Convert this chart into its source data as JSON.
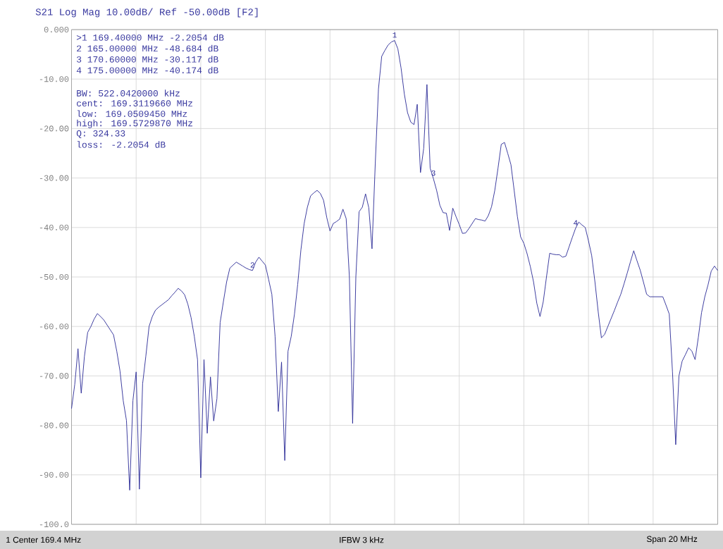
{
  "chart_data": {
    "type": "line",
    "title": "S21 Log Mag 10.00dB/ Ref -50.00dB [F2]",
    "categories": [
      null,
      null,
      null,
      null,
      null,
      null,
      null,
      null,
      null,
      null,
      null,
      null,
      null,
      null,
      null,
      null,
      null,
      null,
      null,
      null,
      null,
      null,
      null,
      null,
      null,
      null,
      null,
      null,
      null,
      null,
      null,
      null,
      null,
      null,
      null,
      null,
      null,
      null,
      null,
      null,
      null,
      null,
      null,
      null,
      null,
      null,
      null,
      null,
      null,
      null,
      null,
      null,
      null,
      null,
      null,
      null,
      null,
      null,
      null,
      null,
      null,
      null,
      null,
      null,
      null,
      null,
      null,
      null,
      null,
      null,
      null,
      null,
      null,
      null,
      null,
      null,
      null,
      null,
      null,
      null,
      null,
      null,
      null,
      null,
      null,
      null,
      null,
      null,
      null,
      null,
      null,
      null,
      null,
      null,
      null,
      null,
      null,
      null,
      null,
      null,
      null,
      null,
      null,
      null,
      null,
      null,
      null,
      null,
      null,
      null,
      null,
      null,
      null,
      null,
      null,
      null,
      null,
      null,
      null,
      null,
      null,
      null,
      null,
      null,
      null,
      null,
      null,
      null,
      null,
      null,
      null,
      null,
      null,
      null,
      null,
      null,
      null,
      null,
      null,
      null,
      null,
      null,
      null,
      null,
      null,
      null,
      null,
      null,
      null,
      null,
      null,
      null,
      null,
      null,
      null,
      null,
      null,
      null,
      null,
      null,
      null,
      null,
      null,
      null,
      null,
      null,
      null,
      null,
      null,
      null,
      null,
      null,
      null,
      null,
      null,
      null,
      null,
      null,
      null,
      null,
      null,
      null,
      null,
      null,
      null,
      null,
      null,
      null,
      null,
      null,
      null,
      null,
      null,
      null,
      null,
      null,
      null,
      null,
      null,
      null,
      null
    ],
    "values": [
      -76.6,
      -71.7,
      -64.5,
      -73.5,
      -66,
      -61.2,
      -60,
      -58.5,
      -57.4,
      -58.0,
      -58.7,
      -59.7,
      -60.7,
      -61.7,
      -65,
      -69,
      -75,
      -79,
      -93.1,
      -75.0,
      -69.2,
      -92.9,
      -71.6,
      -66,
      -60,
      -58,
      -56.7,
      -56.1,
      -55.6,
      -55.1,
      -54.6,
      -53.8,
      -53.1,
      -52.3,
      -52.8,
      -53.6,
      -55.5,
      -58.2,
      -62,
      -66.7,
      -90.6,
      -66.7,
      -81.6,
      -70.2,
      -79.1,
      -74.6,
      -59.2,
      -55,
      -51,
      -48.2,
      -47.6,
      -47.0,
      -47.4,
      -47.8,
      -48.2,
      -48.5,
      -48.684,
      -47.0,
      -46.0,
      -46.8,
      -47.6,
      -50.5,
      -53.5,
      -62,
      -77.2,
      -67.2,
      -87.1,
      -65,
      -62,
      -57.5,
      -51.5,
      -44.5,
      -39.2,
      -35.9,
      -33.6,
      -33.0,
      -32.5,
      -33.1,
      -34.5,
      -38,
      -40.7,
      -39.2,
      -38.8,
      -38.3,
      -36.3,
      -38.2,
      -50,
      -79.6,
      -50,
      -36.8,
      -35.9,
      -33.2,
      -36.0,
      -44.3,
      -27.2,
      -12,
      -5.4,
      -4.2,
      -3.1,
      -2.5,
      -2.2054,
      -3.9,
      -7.8,
      -13,
      -16.8,
      -18.7,
      -19.2,
      -15.1,
      -28.9,
      -24,
      -11.1,
      -28.0,
      -30.117,
      -32.5,
      -35.5,
      -37.0,
      -37.1,
      -40.6,
      -36.1,
      -37.8,
      -39.4,
      -41.2,
      -41.1,
      -40.2,
      -39.2,
      -38.2,
      -38.4,
      -38.5,
      -38.7,
      -37.6,
      -35.8,
      -32.5,
      -28.0,
      -23.2,
      -22.8,
      -25.0,
      -27.3,
      -32.5,
      -37.8,
      -41.9,
      -43.2,
      -45.3,
      -47.9,
      -51.0,
      -55.3,
      -58.0,
      -55,
      -50,
      -45.2,
      -45.4,
      -45.5,
      -45.5,
      -46.0,
      -45.8,
      -43.9,
      -42,
      -40.174,
      -38.9,
      -39.5,
      -40.0,
      -42.7,
      -45.7,
      -51,
      -57,
      -62.3,
      -61.6,
      -60,
      -58.4,
      -56.8,
      -55.1,
      -53.5,
      -51.4,
      -49.2,
      -46.9,
      -44.7,
      -46.7,
      -48.6,
      -51.0,
      -53.5,
      -54.0,
      -54.0,
      -54.0,
      -54.0,
      -54.0,
      -55.7,
      -57.5,
      -69.2,
      -83.9,
      -70.0,
      -67.0,
      -65.7,
      -64.3,
      -65.0,
      -66.7,
      -62.2,
      -57.2,
      -54.0,
      -51.6,
      -48.8,
      -47.8,
      -48.7
    ],
    "color": "#2a2a96",
    "marker": "none",
    "line_style": "solid",
    "grid": true,
    "tick_labels": "y",
    "ylim": [
      -100,
      0
    ],
    "yticks": [
      {
        "value": 0,
        "label": "0.000"
      },
      {
        "value": -10,
        "label": "-10.00"
      },
      {
        "value": -20,
        "label": "-20.00"
      },
      {
        "value": -30,
        "label": "-30.00"
      },
      {
        "value": -40,
        "label": "-40.00"
      },
      {
        "value": -50,
        "label": "-50.00"
      },
      {
        "value": -60,
        "label": "-60.00"
      },
      {
        "value": -70,
        "label": "-70.00"
      },
      {
        "value": -80,
        "label": "-80.00"
      },
      {
        "value": -90,
        "label": "-90.00"
      },
      {
        "value": -100,
        "label": "-100.0"
      }
    ],
    "annotations": [
      ">1 169.40000 MHz -2.2054 dB",
      "2 165.00000 MHz -48.684 dB",
      "3 170.60000 MHz -30.117 dB",
      "4 175.00000 MHz -40.174 dB",
      "BW: 522.0420000 kHz",
      "cent: 169.3119660 MHz",
      "low: 169.0509450 MHz",
      "high: 169.5729870 MHz",
      "Q: 324.33",
      "loss: -2.2054 dB",
      "1 Center 169.4 MHz",
      "IFBW 3 kHz",
      "Span 20 MHz",
      {
        "text": "1",
        "y": -2.2054
      },
      {
        "text": "2",
        "y": -48.684
      },
      {
        "text": "3",
        "y": -30.117
      },
      {
        "text": "4",
        "y": -40.174
      }
    ]
  }
}
